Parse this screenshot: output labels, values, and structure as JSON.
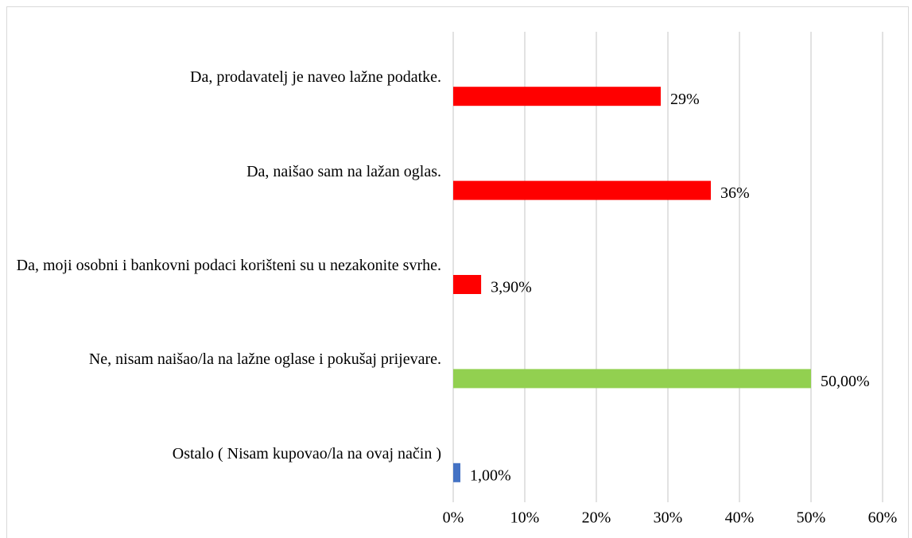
{
  "chart_data": {
    "type": "bar",
    "orientation": "horizontal",
    "categories": [
      "Da, prodavatelj je naveo lažne podatke.",
      "Da, naišao sam na lažan oglas.",
      "Da, moji osobni i bankovni podaci korišteni su u nezakonite svrhe.",
      "Ne, nisam naišao/la na lažne oglase i pokušaj prijevare.",
      "Ostalo ( Nisam kupovao/la na ovaj način )"
    ],
    "values": [
      29,
      36,
      3.9,
      50,
      1
    ],
    "value_labels": [
      "29%",
      "36%",
      "3,90%",
      "50,00%",
      "1,00%"
    ],
    "colors": [
      "#ff0000",
      "#ff0000",
      "#ff0000",
      "#92d050",
      "#4472c4"
    ],
    "xlim": [
      0,
      60
    ],
    "xticks": [
      {
        "value": 0,
        "label": "0%"
      },
      {
        "value": 10,
        "label": "10%"
      },
      {
        "value": 20,
        "label": "20%"
      },
      {
        "value": 30,
        "label": "30%"
      },
      {
        "value": 40,
        "label": "40%"
      },
      {
        "value": 50,
        "label": "50%"
      },
      {
        "value": 60,
        "label": "60%"
      }
    ],
    "grid": true
  }
}
